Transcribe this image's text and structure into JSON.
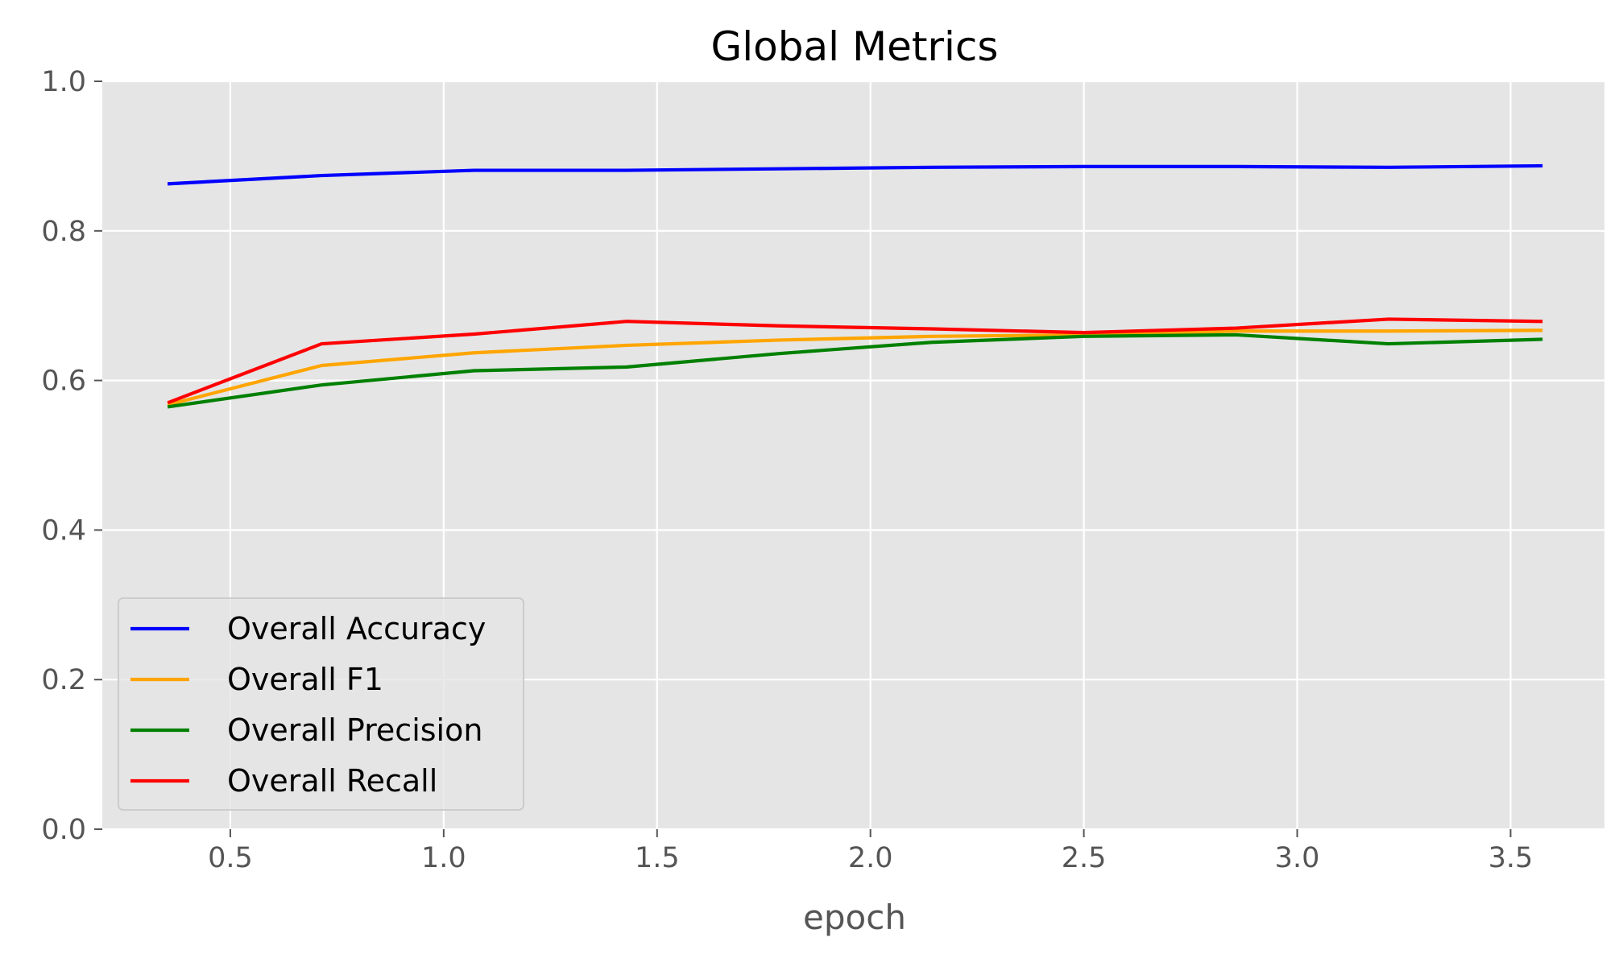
{
  "chart_data": {
    "type": "line",
    "title": "Global Metrics",
    "xlabel": "epoch",
    "ylabel": "",
    "xlim": [
      0.2,
      3.72
    ],
    "ylim": [
      0.0,
      1.0
    ],
    "xticks": [
      "0.5",
      "1.0",
      "1.5",
      "2.0",
      "2.5",
      "3.0",
      "3.5"
    ],
    "yticks": [
      "0.0",
      "0.2",
      "0.4",
      "0.6",
      "0.8",
      "1.0"
    ],
    "grid": true,
    "legend_position": "lower-left",
    "x": [
      0.357,
      0.714,
      1.071,
      1.429,
      1.786,
      2.143,
      2.5,
      2.857,
      3.214,
      3.571
    ],
    "series": [
      {
        "name": "Overall Accuracy",
        "color": "#0000ff",
        "values": [
          0.863,
          0.874,
          0.881,
          0.881,
          0.883,
          0.885,
          0.886,
          0.886,
          0.885,
          0.887
        ]
      },
      {
        "name": "Overall F1",
        "color": "#ffa500",
        "values": [
          0.568,
          0.62,
          0.637,
          0.647,
          0.654,
          0.659,
          0.661,
          0.666,
          0.666,
          0.667
        ]
      },
      {
        "name": "Overall Precision",
        "color": "#008000",
        "values": [
          0.565,
          0.594,
          0.613,
          0.618,
          0.636,
          0.651,
          0.659,
          0.661,
          0.649,
          0.655
        ]
      },
      {
        "name": "Overall Recall",
        "color": "#ff0000",
        "values": [
          0.571,
          0.649,
          0.662,
          0.679,
          0.673,
          0.669,
          0.664,
          0.67,
          0.682,
          0.679
        ]
      }
    ]
  }
}
